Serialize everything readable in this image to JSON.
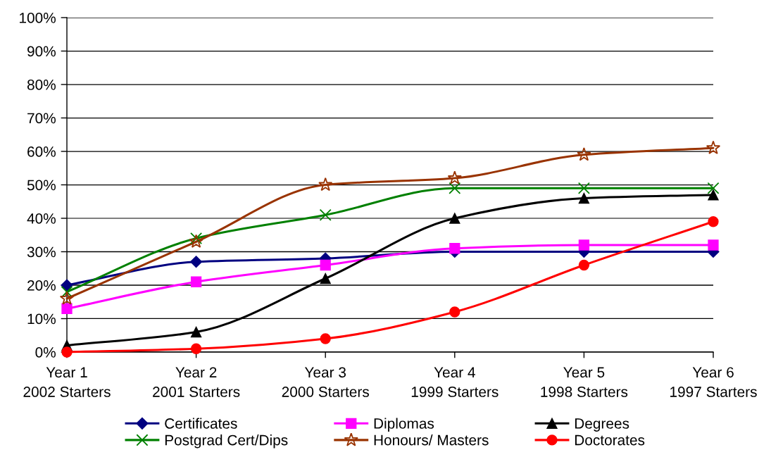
{
  "chart_data": {
    "type": "line",
    "categories": [
      "Year 1\n2002 Starters",
      "Year 2\n2001 Starters",
      "Year 3\n2000 Starters",
      "Year 4\n1999 Starters",
      "Year 5\n1998 Starters",
      "Year 6\n1997 Starters"
    ],
    "series": [
      {
        "name": "Certificates",
        "color": "#000080",
        "marker": "diamond",
        "values": [
          20,
          27,
          28,
          30,
          30,
          30
        ]
      },
      {
        "name": "Diplomas",
        "color": "#ff00ff",
        "marker": "square",
        "values": [
          13,
          21,
          26,
          31,
          32,
          32
        ]
      },
      {
        "name": "Degrees",
        "color": "#000000",
        "marker": "triangle",
        "values": [
          2,
          6,
          22,
          40,
          46,
          47
        ]
      },
      {
        "name": "Postgrad Cert/Dips",
        "color": "#008000",
        "marker": "cross",
        "values": [
          18,
          34,
          41,
          49,
          49,
          49
        ]
      },
      {
        "name": "Honours/ Masters",
        "color": "#993300",
        "marker": "star",
        "values": [
          16,
          33,
          50,
          52,
          59,
          61
        ]
      },
      {
        "name": "Doctorates",
        "color": "#ff0000",
        "marker": "circle",
        "values": [
          0,
          1,
          4,
          12,
          26,
          39
        ]
      }
    ],
    "ylim": [
      0,
      100
    ],
    "yticks": [
      {
        "value": 0,
        "label": "0%"
      },
      {
        "value": 10,
        "label": "10%"
      },
      {
        "value": 20,
        "label": "20%"
      },
      {
        "value": 30,
        "label": "30%"
      },
      {
        "value": 40,
        "label": "40%"
      },
      {
        "value": 50,
        "label": "50%"
      },
      {
        "value": 60,
        "label": "60%"
      },
      {
        "value": 70,
        "label": "70%"
      },
      {
        "value": 80,
        "label": "80%"
      },
      {
        "value": 90,
        "label": "90%"
      },
      {
        "value": 100,
        "label": "100%"
      }
    ],
    "grid": "y",
    "legend": "bottom",
    "line_style": "solid"
  }
}
